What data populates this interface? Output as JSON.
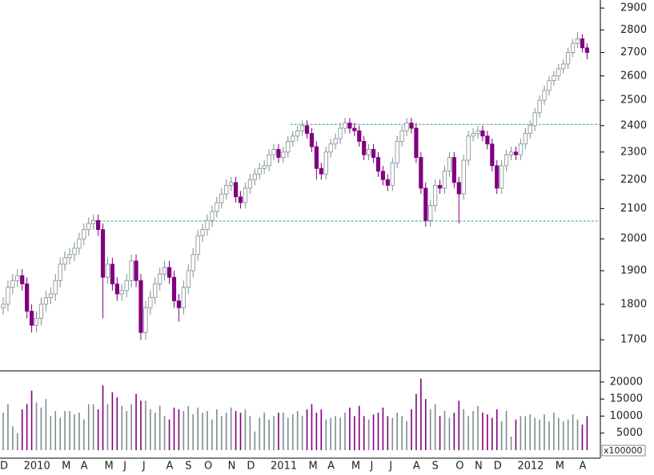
{
  "chart_data": [
    {
      "type": "candlestick",
      "log_scale": true,
      "up_color": "#ffffff",
      "up_stroke": "#7f8c8d",
      "down_color": "#800080",
      "categories": [
        "D",
        null,
        null,
        null,
        null,
        "2010",
        null,
        null,
        null,
        null,
        null,
        null,
        null,
        "M",
        null,
        null,
        null,
        "A",
        null,
        null,
        null,
        null,
        "M",
        null,
        null,
        null,
        "J",
        null,
        null,
        null,
        "J",
        null,
        null,
        null,
        null,
        "A",
        null,
        null,
        null,
        "S",
        null,
        null,
        null,
        "O",
        null,
        null,
        null,
        null,
        "N",
        null,
        null,
        null,
        "D",
        null,
        null,
        null,
        null,
        "2011",
        null,
        null,
        null,
        null,
        null,
        null,
        null,
        "M",
        null,
        null,
        null,
        "A",
        null,
        null,
        null,
        null,
        "M",
        null,
        null,
        null,
        "J",
        null,
        null,
        null,
        "J",
        null,
        null,
        null,
        null,
        "A",
        null,
        null,
        null,
        "S",
        null,
        null,
        null,
        null,
        "O",
        null,
        null,
        null,
        "N",
        null,
        null,
        null,
        "D",
        null,
        null,
        null,
        null,
        "2012",
        null,
        null,
        null,
        null,
        null,
        null,
        null,
        "M",
        null,
        null,
        null,
        null,
        "A",
        null
      ],
      "open": [
        1790,
        1800,
        1850,
        1870,
        1885,
        1860,
        1780,
        1740,
        1760,
        1800,
        1820,
        1830,
        1870,
        1920,
        1940,
        1950,
        1970,
        2000,
        2030,
        2050,
        2060,
        2030,
        1880,
        1920,
        1860,
        1830,
        1840,
        1870,
        1930,
        1870,
        1720,
        1790,
        1820,
        1860,
        1890,
        1910,
        1880,
        1810,
        1790,
        1850,
        1900,
        1950,
        2010,
        2030,
        2060,
        2090,
        2120,
        2150,
        2180,
        2190,
        2140,
        2120,
        2170,
        2200,
        2220,
        2240,
        2250,
        2290,
        2310,
        2280,
        2300,
        2340,
        2360,
        2380,
        2400,
        2370,
        2320,
        2240,
        2220,
        2300,
        2330,
        2350,
        2390,
        2410,
        2390,
        2380,
        2340,
        2290,
        2310,
        2280,
        2230,
        2200,
        2180,
        2260,
        2340,
        2380,
        2410,
        2390,
        2280,
        2170,
        2060,
        2110,
        2180,
        2170,
        2230,
        2280,
        2190,
        2150,
        2270,
        2360,
        2370,
        2380,
        2360,
        2330,
        2250,
        2170,
        2250,
        2290,
        2300,
        2290,
        2330,
        2370,
        2400,
        2450,
        2500,
        2540,
        2580,
        2600,
        2630,
        2650,
        2700,
        2740,
        2760,
        2720
      ],
      "high": [
        1820,
        1870,
        1890,
        1905,
        1905,
        1880,
        1800,
        1780,
        1820,
        1840,
        1850,
        1890,
        1940,
        1960,
        1970,
        1990,
        2020,
        2050,
        2070,
        2080,
        2080,
        2050,
        1940,
        1940,
        1880,
        1860,
        1890,
        1950,
        1950,
        1890,
        1810,
        1840,
        1880,
        1910,
        1930,
        1930,
        1900,
        1830,
        1870,
        1920,
        1970,
        2030,
        2050,
        2080,
        2110,
        2140,
        2170,
        2200,
        2210,
        2210,
        2160,
        2190,
        2220,
        2240,
        2260,
        2270,
        2310,
        2330,
        2330,
        2320,
        2360,
        2380,
        2400,
        2420,
        2420,
        2390,
        2340,
        2260,
        2320,
        2350,
        2370,
        2410,
        2430,
        2430,
        2410,
        2400,
        2360,
        2330,
        2330,
        2300,
        2250,
        2220,
        2280,
        2360,
        2400,
        2430,
        2430,
        2410,
        2300,
        2190,
        2130,
        2200,
        2200,
        2250,
        2300,
        2300,
        2210,
        2290,
        2380,
        2390,
        2400,
        2400,
        2380,
        2350,
        2270,
        2270,
        2310,
        2320,
        2320,
        2350,
        2390,
        2420,
        2470,
        2520,
        2560,
        2600,
        2620,
        2650,
        2670,
        2720,
        2760,
        2790,
        2780,
        2740
      ],
      "low": [
        1770,
        1780,
        1830,
        1850,
        1840,
        1760,
        1720,
        1720,
        1740,
        1780,
        1800,
        1810,
        1850,
        1900,
        1920,
        1930,
        1950,
        1980,
        2010,
        2030,
        2010,
        1760,
        1860,
        1840,
        1810,
        1810,
        1820,
        1850,
        1850,
        1700,
        1700,
        1770,
        1800,
        1840,
        1870,
        1860,
        1790,
        1750,
        1770,
        1830,
        1880,
        1930,
        1990,
        2010,
        2040,
        2070,
        2100,
        2130,
        2160,
        2120,
        2100,
        2100,
        2150,
        2180,
        2200,
        2220,
        2230,
        2270,
        2260,
        2260,
        2280,
        2320,
        2340,
        2360,
        2350,
        2300,
        2200,
        2200,
        2200,
        2280,
        2310,
        2330,
        2370,
        2370,
        2360,
        2320,
        2270,
        2270,
        2260,
        2210,
        2180,
        2160,
        2160,
        2240,
        2320,
        2360,
        2370,
        2260,
        2150,
        2040,
        2040,
        2090,
        2150,
        2150,
        2210,
        2170,
        2050,
        2130,
        2250,
        2340,
        2350,
        2340,
        2310,
        2230,
        2150,
        2150,
        2230,
        2270,
        2270,
        2270,
        2310,
        2350,
        2380,
        2430,
        2480,
        2520,
        2560,
        2580,
        2610,
        2630,
        2680,
        2720,
        2700,
        2670
      ],
      "close": [
        1800,
        1850,
        1870,
        1885,
        1860,
        1780,
        1740,
        1760,
        1800,
        1820,
        1830,
        1870,
        1920,
        1940,
        1950,
        1970,
        2000,
        2030,
        2050,
        2060,
        2030,
        1880,
        1920,
        1860,
        1830,
        1840,
        1870,
        1930,
        1870,
        1720,
        1790,
        1820,
        1860,
        1890,
        1910,
        1880,
        1810,
        1790,
        1850,
        1900,
        1950,
        2010,
        2030,
        2060,
        2090,
        2120,
        2150,
        2180,
        2190,
        2140,
        2120,
        2170,
        2200,
        2220,
        2240,
        2250,
        2290,
        2310,
        2280,
        2300,
        2340,
        2360,
        2380,
        2400,
        2370,
        2320,
        2240,
        2220,
        2300,
        2330,
        2350,
        2390,
        2410,
        2390,
        2380,
        2340,
        2290,
        2310,
        2280,
        2230,
        2200,
        2180,
        2260,
        2340,
        2380,
        2410,
        2390,
        2280,
        2170,
        2060,
        2110,
        2180,
        2170,
        2230,
        2280,
        2190,
        2150,
        2270,
        2360,
        2370,
        2380,
        2360,
        2330,
        2250,
        2170,
        2250,
        2290,
        2300,
        2290,
        2330,
        2370,
        2400,
        2450,
        2500,
        2540,
        2580,
        2600,
        2630,
        2650,
        2700,
        2740,
        2760,
        2720,
        2700
      ],
      "ylim": [
        1617,
        2938
      ],
      "yticks": [
        1700,
        1800,
        1900,
        2000,
        2100,
        2200,
        2300,
        2400,
        2500,
        2600,
        2700,
        2800,
        2900
      ],
      "hlines": [
        {
          "value": 2405,
          "from": 61,
          "color": "#3a9a8a"
        },
        {
          "value": 2058,
          "from": 19,
          "color": "#3a9a8a"
        }
      ]
    },
    {
      "type": "bar",
      "up_color": "#7f8c8d",
      "down_color": "#800080",
      "volume_unit_label": "x100000",
      "values": [
        11000,
        13500,
        7000,
        5000,
        12000,
        13500,
        17500,
        14000,
        12500,
        15000,
        10000,
        11500,
        9500,
        11500,
        11500,
        10500,
        11000,
        9000,
        13500,
        13500,
        12000,
        19000,
        13500,
        17000,
        15500,
        13000,
        11500,
        13500,
        16500,
        14500,
        14500,
        12000,
        11000,
        13000,
        10000,
        9000,
        12500,
        12000,
        11500,
        13000,
        10500,
        12500,
        11000,
        11500,
        9000,
        12000,
        10000,
        11000,
        12500,
        11500,
        11000,
        12000,
        10000,
        5500,
        9500,
        11000,
        9000,
        10000,
        11000,
        11000,
        9500,
        10500,
        11500,
        10000,
        12000,
        13500,
        11000,
        12000,
        9000,
        9500,
        10000,
        9500,
        11000,
        12500,
        10000,
        13000,
        10000,
        9000,
        10500,
        11000,
        12500,
        10000,
        9500,
        11000,
        10000,
        8500,
        12000,
        16500,
        21000,
        15000,
        12000,
        13500,
        10000,
        11500,
        9500,
        11000,
        14500,
        12000,
        10000,
        11500,
        13000,
        11000,
        10500,
        9500,
        12000,
        8500,
        11500,
        4000,
        9000,
        10000,
        10000,
        10500,
        9500,
        9000,
        10500,
        8500,
        11000,
        9500,
        8500,
        9000,
        10500,
        9000,
        7500,
        10000
      ],
      "ylim": [
        0,
        22800
      ],
      "yticks": [
        5000,
        10000,
        15000,
        20000
      ]
    }
  ]
}
